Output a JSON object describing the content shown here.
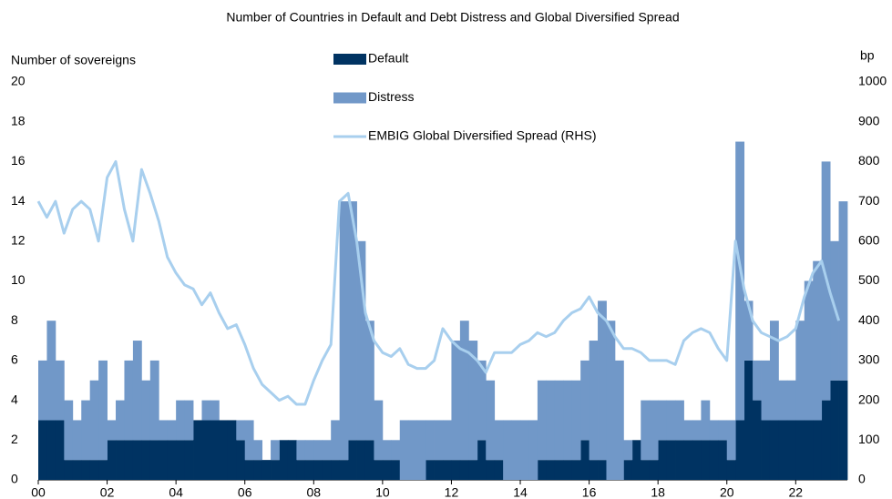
{
  "chart_data": {
    "type": "bar",
    "title": "Number of Countries in Default and Debt Distress and Global Diversified Spread",
    "ylabel": "Number of sovereigns",
    "y2label": "bp",
    "legend": "top",
    "stacked": true,
    "x": [
      2000,
      2000.25,
      2000.5,
      2000.75,
      2001,
      2001.25,
      2001.5,
      2001.75,
      2002,
      2002.25,
      2002.5,
      2002.75,
      2003,
      2003.25,
      2003.5,
      2003.75,
      2004,
      2004.25,
      2004.5,
      2004.75,
      2005,
      2005.25,
      2005.5,
      2005.75,
      2006,
      2006.25,
      2006.5,
      2006.75,
      2007,
      2007.25,
      2007.5,
      2007.75,
      2008,
      2008.25,
      2008.5,
      2008.75,
      2009,
      2009.25,
      2009.5,
      2009.75,
      2010,
      2010.25,
      2010.5,
      2010.75,
      2011,
      2011.25,
      2011.5,
      2011.75,
      2012,
      2012.25,
      2012.5,
      2012.75,
      2013,
      2013.25,
      2013.5,
      2013.75,
      2014,
      2014.25,
      2014.5,
      2014.75,
      2015,
      2015.25,
      2015.5,
      2015.75,
      2016,
      2016.25,
      2016.5,
      2016.75,
      2017,
      2017.25,
      2017.5,
      2017.75,
      2018,
      2018.25,
      2018.5,
      2018.75,
      2019,
      2019.25,
      2019.5,
      2019.75,
      2020,
      2020.25,
      2020.5,
      2020.75,
      2021,
      2021.25,
      2021.5,
      2021.75,
      2022,
      2022.25,
      2022.5,
      2022.75,
      2023,
      2023.25
    ],
    "xlim": [
      2000,
      2023.5
    ],
    "xticks": [
      {
        "value": 2000,
        "label": "00"
      },
      {
        "value": 2002,
        "label": "02"
      },
      {
        "value": 2004,
        "label": "04"
      },
      {
        "value": 2006,
        "label": "06"
      },
      {
        "value": 2008,
        "label": "08"
      },
      {
        "value": 2010,
        "label": "10"
      },
      {
        "value": 2012,
        "label": "12"
      },
      {
        "value": 2014,
        "label": "14"
      },
      {
        "value": 2016,
        "label": "16"
      },
      {
        "value": 2018,
        "label": "18"
      },
      {
        "value": 2020,
        "label": "20"
      },
      {
        "value": 2022,
        "label": "22"
      }
    ],
    "ylim": [
      0,
      20
    ],
    "yticks": [
      0,
      2,
      4,
      6,
      8,
      10,
      12,
      14,
      16,
      18,
      20
    ],
    "y2lim": [
      0,
      1000
    ],
    "y2ticks": [
      0,
      100,
      200,
      300,
      400,
      500,
      600,
      700,
      800,
      900,
      1000
    ],
    "series": [
      {
        "name": "Default",
        "color": "#003362",
        "type": "bar",
        "values": [
          3,
          3,
          3,
          1,
          1,
          1,
          1,
          1,
          2,
          2,
          2,
          2,
          2,
          2,
          2,
          2,
          2,
          2,
          3,
          3,
          3,
          3,
          3,
          2,
          1,
          1,
          1,
          1,
          2,
          2,
          1,
          1,
          1,
          1,
          1,
          1,
          2,
          2,
          2,
          1,
          1,
          1,
          0,
          0,
          0,
          1,
          1,
          1,
          1,
          1,
          1,
          2,
          1,
          1,
          0,
          0,
          0,
          0,
          1,
          1,
          1,
          1,
          1,
          2,
          1,
          1,
          0,
          0,
          1,
          2,
          1,
          1,
          2,
          2,
          2,
          2,
          2,
          2,
          2,
          2,
          1,
          3,
          6,
          4,
          3,
          3,
          3,
          3,
          3,
          3,
          3,
          4,
          5,
          5
        ]
      },
      {
        "name": "Distress",
        "color": "#7198c8",
        "type": "bar",
        "values": [
          3,
          5,
          3,
          3,
          2,
          3,
          4,
          5,
          1,
          2,
          4,
          5,
          3,
          4,
          1,
          1,
          2,
          2,
          0,
          1,
          1,
          0,
          0,
          1,
          2,
          1,
          0,
          1,
          0,
          0,
          1,
          1,
          1,
          1,
          2,
          13,
          12,
          10,
          6,
          3,
          1,
          1,
          3,
          3,
          3,
          2,
          2,
          2,
          6,
          7,
          6,
          4,
          4,
          2,
          3,
          3,
          3,
          3,
          4,
          4,
          4,
          4,
          4,
          4,
          6,
          8,
          8,
          6,
          1,
          0,
          3,
          3,
          2,
          2,
          2,
          1,
          1,
          2,
          1,
          1,
          2,
          14,
          3,
          2,
          3,
          5,
          2,
          2,
          5,
          7,
          8,
          12,
          7,
          9
        ]
      },
      {
        "name": "EMBIG Global Diversified Spread (RHS)",
        "color": "#a8cfee",
        "type": "line",
        "axis": "y2",
        "values": [
          700,
          660,
          700,
          620,
          680,
          700,
          680,
          600,
          760,
          800,
          680,
          600,
          780,
          720,
          650,
          560,
          520,
          490,
          480,
          440,
          470,
          420,
          380,
          390,
          340,
          280,
          240,
          220,
          200,
          210,
          190,
          190,
          250,
          300,
          340,
          700,
          720,
          600,
          420,
          350,
          320,
          310,
          330,
          290,
          280,
          280,
          300,
          380,
          350,
          330,
          320,
          300,
          270,
          320,
          320,
          320,
          340,
          350,
          370,
          360,
          370,
          400,
          420,
          430,
          460,
          420,
          400,
          360,
          330,
          330,
          320,
          300,
          300,
          300,
          290,
          350,
          370,
          380,
          370,
          330,
          300,
          600,
          480,
          400,
          370,
          360,
          350,
          360,
          380,
          460,
          520,
          550,
          470,
          400
        ]
      }
    ]
  }
}
